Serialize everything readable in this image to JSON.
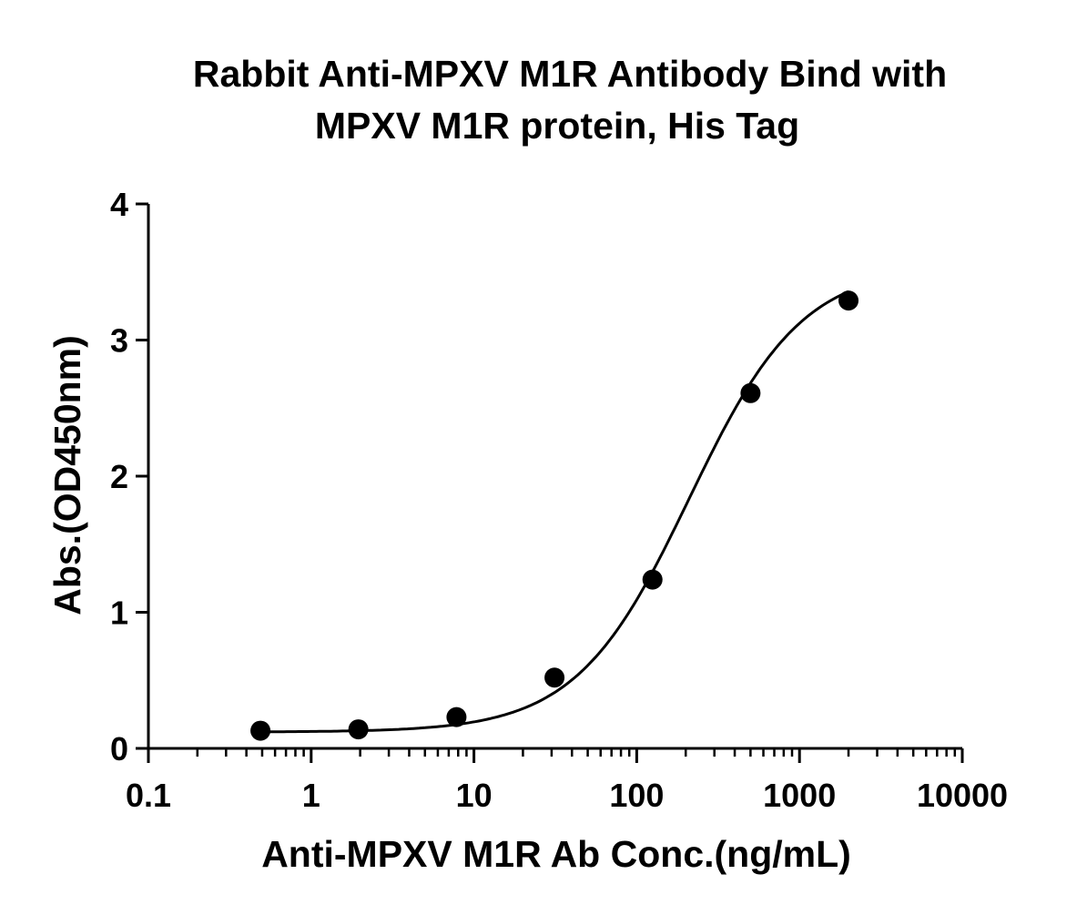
{
  "chart_data": {
    "type": "scatter",
    "title": [
      "Rabbit Anti-MPXV M1R Antibody Bind with",
      "MPXV M1R protein, His Tag"
    ],
    "xlabel": "Anti-MPXV M1R Ab Conc.(ng/mL)",
    "ylabel": "Abs.(OD450nm)",
    "xscale": "log",
    "xlim": [
      0.1,
      10000
    ],
    "ylim": [
      0,
      4
    ],
    "xticks": [
      "0.1",
      "1",
      "10",
      "100",
      "1000",
      "10000"
    ],
    "yticks": [
      "0",
      "1",
      "2",
      "3",
      "4"
    ],
    "grid": false,
    "fit_curve": "sigmoidal",
    "series": [
      {
        "x": [
          0.488,
          1.95,
          7.81,
          31.25,
          125,
          500,
          2000
        ],
        "y": [
          0.13,
          0.14,
          0.23,
          0.52,
          1.24,
          2.61,
          3.29
        ]
      }
    ],
    "colors": {
      "marker": "#000000",
      "line": "#000000"
    }
  }
}
